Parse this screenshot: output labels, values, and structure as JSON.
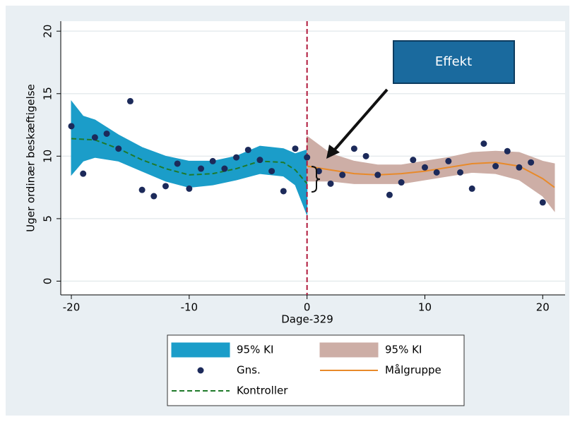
{
  "chart_data": {
    "type": "line",
    "xlabel": "Dage-329",
    "ylabel": "Uger ordinær beskæftigelse",
    "xlim": [
      -20.9,
      21.9
    ],
    "ylim": [
      -1.1,
      20.8
    ],
    "xticks": [
      -20,
      -10,
      0,
      10,
      20
    ],
    "yticks": [
      0,
      5,
      10,
      15,
      20
    ],
    "grid": true,
    "cutoff": 0,
    "cutoff_color": "#b0193c",
    "annotation": {
      "text": "Effekt",
      "color": "#1a6a9e"
    },
    "series": [
      {
        "name": "95% KI",
        "kind": "band",
        "color": "#1b9dc9",
        "x": [
          -20,
          -19,
          -18,
          -16,
          -14,
          -12,
          -10,
          -8,
          -6,
          -4,
          -2,
          -1,
          0
        ],
        "lower": [
          8.5,
          9.6,
          9.9,
          9.6,
          8.8,
          8.0,
          7.5,
          7.7,
          8.1,
          8.6,
          8.4,
          7.7,
          5.3
        ],
        "upper": [
          14.4,
          13.2,
          12.9,
          11.7,
          10.7,
          10.0,
          9.6,
          9.6,
          10.0,
          10.8,
          10.6,
          10.2,
          10.5
        ]
      },
      {
        "name": "95% KI",
        "kind": "band",
        "color": "#cdaea6",
        "x": [
          0,
          2,
          4,
          6,
          8,
          10,
          12,
          14,
          16,
          18,
          20,
          21
        ],
        "lower": [
          8.0,
          8.0,
          7.8,
          7.8,
          7.8,
          8.1,
          8.4,
          8.7,
          8.6,
          8.1,
          6.8,
          5.6
        ],
        "upper": [
          11.6,
          10.2,
          9.6,
          9.3,
          9.3,
          9.6,
          9.9,
          10.3,
          10.4,
          10.3,
          9.6,
          9.4
        ]
      },
      {
        "name": "Gns.",
        "kind": "points",
        "color": "#1c2a5a",
        "x": [
          -20,
          -19,
          -18,
          -17,
          -16,
          -15,
          -14,
          -13,
          -12,
          -11,
          -10,
          -9,
          -8,
          -7,
          -6,
          -5,
          -4,
          -3,
          -2,
          -1,
          0,
          1,
          2,
          3,
          4,
          5,
          6,
          7,
          8,
          9,
          10,
          11,
          12,
          13,
          14,
          15,
          16,
          17,
          18,
          19,
          20
        ],
        "values": [
          12.4,
          8.6,
          11.5,
          11.8,
          10.6,
          14.4,
          7.3,
          6.8,
          7.6,
          9.4,
          7.4,
          9.0,
          9.6,
          9.0,
          9.9,
          10.5,
          9.7,
          8.8,
          7.2,
          10.6,
          9.9,
          8.8,
          7.8,
          8.5,
          10.6,
          10.0,
          8.5,
          6.9,
          7.9,
          9.7,
          9.1,
          8.7,
          9.6,
          8.7,
          7.4,
          11.0,
          9.2,
          10.4,
          9.1,
          9.5,
          6.3
        ]
      },
      {
        "name": "Målgruppe",
        "kind": "line",
        "color": "#e88a2a",
        "x": [
          0,
          2,
          4,
          6,
          8,
          10,
          12,
          14,
          16,
          18,
          20,
          21
        ],
        "values": [
          9.2,
          8.9,
          8.6,
          8.5,
          8.6,
          8.8,
          9.1,
          9.4,
          9.5,
          9.2,
          8.2,
          7.5
        ]
      },
      {
        "name": "Kontroller",
        "kind": "dashed",
        "color": "#1f7a2a",
        "x": [
          -20,
          -18,
          -16,
          -14,
          -12,
          -10,
          -8,
          -6,
          -4,
          -2,
          -1,
          0
        ],
        "values": [
          11.4,
          11.3,
          10.6,
          9.7,
          9.0,
          8.5,
          8.6,
          9.0,
          9.6,
          9.5,
          8.9,
          7.8
        ]
      }
    ]
  }
}
